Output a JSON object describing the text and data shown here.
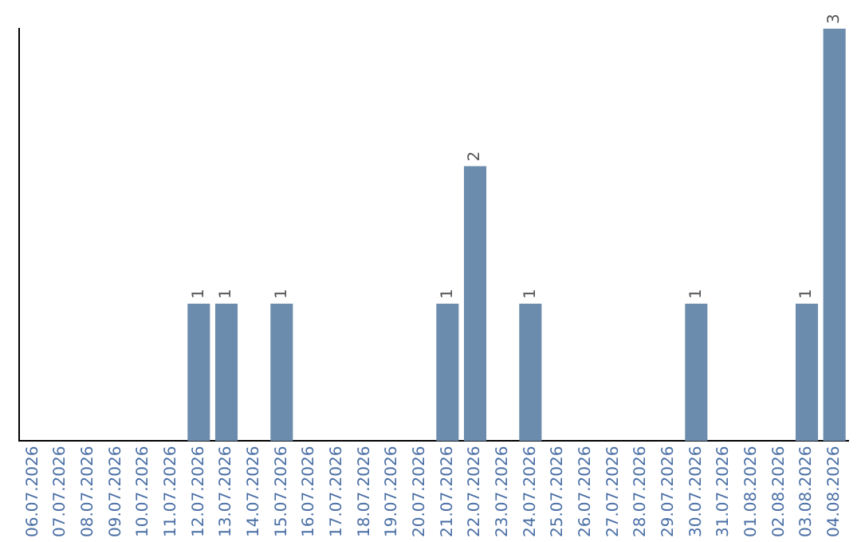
{
  "chart_data": {
    "type": "bar",
    "categories": [
      "06.07.2026",
      "07.07.2026",
      "08.07.2026",
      "09.07.2026",
      "10.07.2026",
      "11.07.2026",
      "12.07.2026",
      "13.07.2026",
      "14.07.2026",
      "15.07.2026",
      "16.07.2026",
      "17.07.2026",
      "18.07.2026",
      "19.07.2026",
      "20.07.2026",
      "21.07.2026",
      "22.07.2026",
      "23.07.2026",
      "24.07.2026",
      "25.07.2026",
      "26.07.2026",
      "27.07.2026",
      "28.07.2026",
      "29.07.2026",
      "30.07.2026",
      "31.07.2026",
      "01.08.2026",
      "02.08.2026",
      "03.08.2026",
      "04.08.2026"
    ],
    "values": [
      0,
      0,
      0,
      0,
      0,
      0,
      1,
      1,
      0,
      1,
      0,
      0,
      0,
      0,
      0,
      1,
      2,
      0,
      1,
      0,
      0,
      0,
      0,
      0,
      1,
      0,
      0,
      0,
      1,
      3
    ],
    "value_labels": [
      null,
      null,
      null,
      null,
      null,
      null,
      "1",
      "1",
      null,
      "1",
      null,
      null,
      null,
      null,
      null,
      "1",
      "2",
      null,
      "1",
      null,
      null,
      null,
      null,
      null,
      "1",
      null,
      null,
      null,
      "1",
      "3"
    ],
    "color": "#6b8cad",
    "grid": false,
    "legend": false,
    "tick_labels": "x"
  }
}
